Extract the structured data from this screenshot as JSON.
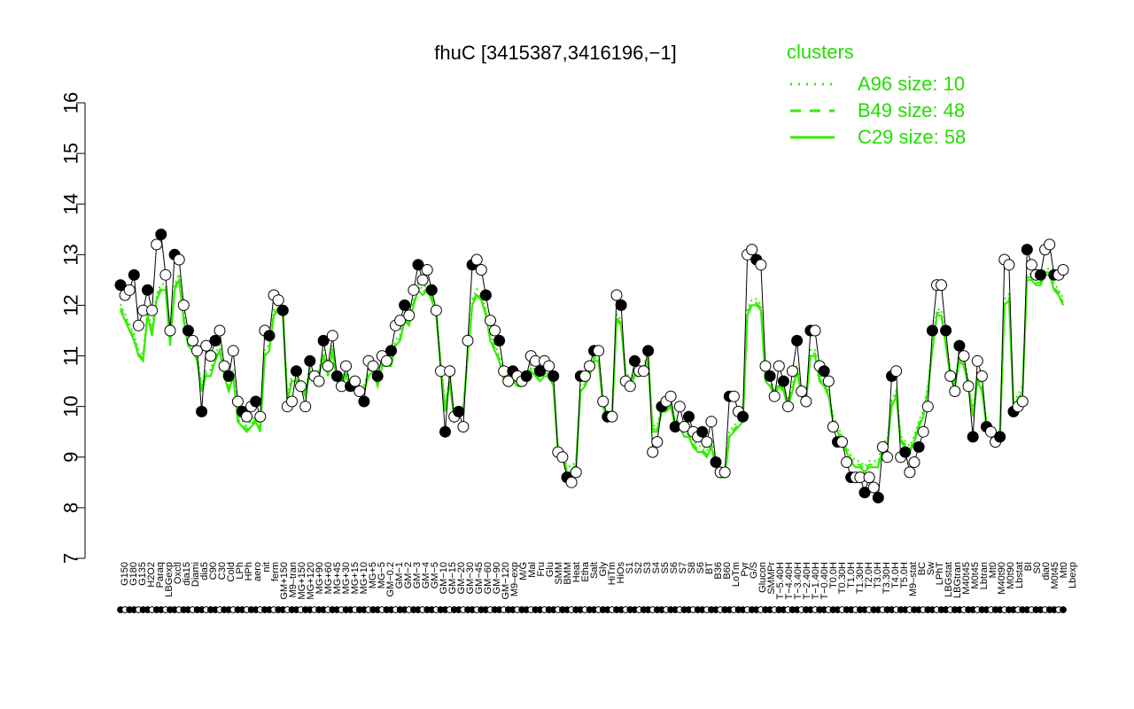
{
  "chart_data": {
    "type": "line",
    "title": "fhuC [3415387,3416196,−1]",
    "xlabel": "",
    "ylabel": "",
    "ylim": [
      7,
      16
    ],
    "yticks": [
      7,
      8,
      9,
      10,
      11,
      12,
      13,
      14,
      15,
      16
    ],
    "grid": false,
    "legend": {
      "title": "clusters",
      "position": "top-right",
      "color": "#22dd00",
      "entries": [
        {
          "label": "A96 size: 10",
          "style": "dotted"
        },
        {
          "label": "B49 size: 48",
          "style": "dashed"
        },
        {
          "label": "C29 size: 58",
          "style": "solid"
        }
      ]
    },
    "colors": {
      "lines": "#33ee00",
      "points_dark": "#000000",
      "points_light": "#ffffff"
    },
    "x_tick_labels": [
      "G150",
      "G180",
      "G135",
      "H2O2",
      "Paraq",
      "LBGexp",
      "Oxctl",
      "dia15",
      "Diami",
      "dia5",
      "C90",
      "C30",
      "Cold",
      "LPh",
      "HPh",
      "aero",
      "nit",
      "ferm",
      "GM+150",
      "M9–tran",
      "MG+150",
      "MG+120",
      "MG+90",
      "MG+60",
      "MG+45",
      "MG+30",
      "MG+15",
      "MG+10",
      "MG+5",
      "MG−5",
      "GM−0.2",
      "GM−1",
      "GM−2",
      "GM−3",
      "GM−4",
      "GM−5",
      "GM−10",
      "GM−15",
      "GM−20",
      "GM−30",
      "GM−45",
      "GM−60",
      "GM−90",
      "GM−120",
      "M9–exp",
      "M/G",
      "Mal",
      "Fru",
      "Glu",
      "SMM",
      "BMM",
      "Heat",
      "Etha",
      "Salt",
      "Gly",
      "HiTm",
      "HiOs",
      "S1",
      "S2",
      "S3",
      "S4",
      "S5",
      "S6",
      "S7",
      "S8",
      "S6",
      "BT",
      "B36",
      "B60",
      "LoTm",
      "Pyr",
      "G/S",
      "Glucon",
      "SMMPr",
      "T−5.40H",
      "T−4.40H",
      "T−3.40H",
      "T−2.40H",
      "T−1.40H",
      "T−0.40H",
      "T0.0H",
      "T0.30H",
      "T1.0H",
      "T1.30H",
      "T2.0H",
      "T3.0H",
      "T3.30H",
      "T4.0H",
      "T5.0H",
      "M9–stat",
      "BC",
      "Sw",
      "LPhT",
      "LBGstat",
      "LBGtran",
      "M40t45",
      "M0t45",
      "Lbtran",
      "Mt0",
      "M40t90",
      "M0t90",
      "Lbstat",
      "BI",
      "S0",
      "dia0",
      "M0t45",
      "Mt0",
      "Lbexp"
    ],
    "series": [
      {
        "name": "",
        "values": [
          12.4,
          12.2,
          12.3,
          12.6,
          11.6,
          11.9,
          12.3,
          11.9,
          13.2,
          13.4,
          12.6,
          11.5,
          13.0,
          12.9,
          12.0,
          11.5,
          11.3,
          11.1,
          9.9,
          11.2,
          11.0,
          11.3,
          11.5,
          10.8,
          10.6,
          11.1,
          10.1,
          9.9,
          9.8,
          10.0,
          10.1,
          9.8,
          11.5,
          11.4,
          12.2,
          12.1,
          11.9,
          10.0,
          10.1,
          10.7,
          10.4,
          10.0,
          10.9,
          10.6,
          10.5,
          11.3,
          10.8,
          11.4,
          10.6,
          10.4,
          10.8,
          10.4,
          10.5,
          10.3,
          10.1,
          10.9,
          10.8,
          10.6,
          11.0,
          10.9,
          11.1,
          11.6,
          11.7,
          12.0,
          11.8,
          12.3,
          12.8,
          12.5,
          12.7,
          12.3,
          11.9,
          10.7,
          9.5,
          10.7,
          9.8,
          9.9,
          9.6,
          11.3,
          12.8,
          12.9,
          12.7,
          12.2,
          11.7,
          11.5,
          11.3,
          10.7,
          10.5,
          10.7,
          10.6,
          10.5,
          10.6,
          11.0,
          10.9,
          10.7,
          10.9,
          10.8,
          10.6,
          9.1,
          9.0,
          8.6,
          8.5,
          8.7,
          10.6,
          10.6,
          10.8,
          11.1,
          11.1,
          10.1,
          9.8,
          9.8,
          12.2,
          12.0,
          10.5,
          10.4,
          10.9,
          10.7,
          10.7,
          11.1,
          9.1,
          9.3,
          10.0,
          10.1,
          10.2,
          9.6,
          10.0,
          9.6,
          9.8,
          9.5,
          9.4,
          9.5,
          9.3,
          9.7,
          8.9,
          8.7,
          8.7,
          10.2,
          10.2,
          9.9,
          9.8,
          13.0,
          13.1,
          12.9,
          12.8,
          10.8,
          10.6,
          10.2,
          10.8,
          10.5,
          10.0,
          10.7,
          11.3,
          10.3,
          10.1,
          11.5,
          11.5,
          10.8,
          10.7,
          10.5,
          9.6,
          9.3,
          9.3,
          8.9,
          8.6,
          8.6,
          8.6,
          8.3,
          8.6,
          8.4,
          8.2,
          9.2,
          9.0,
          10.6,
          10.7,
          9.0,
          9.1,
          8.7,
          8.9,
          9.2,
          9.5,
          10.0,
          11.5,
          12.4,
          12.4,
          11.5,
          10.6,
          10.3,
          11.2,
          11.0,
          10.4,
          9.4,
          10.9,
          10.6,
          9.6,
          9.5,
          9.3,
          9.4,
          12.9,
          12.8,
          9.9,
          10.0,
          10.1,
          13.1,
          12.8,
          12.6,
          12.6,
          13.1,
          13.2,
          12.6,
          12.6,
          12.7
        ]
      },
      {
        "name": "C29 size: 58",
        "values": [
          11.9,
          11.7,
          11.5,
          11.3,
          11.0,
          10.9,
          11.8,
          11.4,
          12.1,
          12.3,
          12.3,
          11.2,
          12.3,
          12.5,
          11.7,
          11.2,
          11.1,
          10.9,
          10.3,
          10.6,
          10.6,
          10.9,
          11.1,
          10.6,
          10.3,
          10.6,
          9.7,
          9.6,
          9.5,
          9.6,
          9.7,
          9.5,
          11.0,
          11.1,
          11.8,
          11.9,
          11.8,
          10.1,
          10.5,
          10.5,
          10.4,
          10.2,
          10.7,
          10.5,
          10.6,
          11.0,
          10.6,
          11.1,
          10.5,
          10.4,
          10.6,
          10.4,
          10.4,
          10.3,
          10.3,
          10.6,
          10.7,
          10.4,
          10.8,
          10.8,
          10.8,
          11.2,
          11.3,
          11.7,
          11.6,
          12.0,
          12.3,
          12.2,
          12.3,
          12.1,
          11.8,
          10.8,
          9.9,
          10.5,
          9.7,
          9.8,
          9.9,
          11.0,
          12.0,
          12.2,
          12.1,
          11.8,
          11.3,
          11.1,
          10.9,
          10.5,
          10.4,
          10.5,
          10.4,
          10.4,
          10.5,
          10.7,
          10.6,
          10.5,
          10.6,
          10.6,
          10.4,
          9.1,
          9.0,
          8.7,
          8.7,
          8.8,
          10.3,
          10.4,
          10.6,
          10.9,
          10.9,
          10.0,
          9.7,
          9.8,
          11.7,
          11.6,
          10.6,
          10.4,
          10.6,
          10.6,
          10.7,
          10.9,
          9.5,
          9.5,
          9.9,
          9.9,
          10.0,
          9.6,
          9.6,
          9.4,
          9.4,
          9.2,
          9.1,
          9.1,
          9.0,
          9.2,
          8.8,
          8.6,
          8.6,
          9.4,
          9.5,
          9.6,
          9.7,
          11.8,
          12.0,
          12.0,
          11.9,
          10.5,
          10.4,
          10.2,
          10.4,
          10.3,
          10.0,
          10.3,
          10.7,
          10.2,
          10.1,
          11.0,
          11.0,
          10.5,
          10.4,
          10.2,
          9.7,
          9.5,
          9.3,
          9.1,
          8.9,
          8.8,
          8.8,
          8.7,
          8.8,
          8.8,
          8.8,
          9.2,
          9.2,
          10.0,
          10.2,
          9.3,
          9.2,
          9.1,
          9.3,
          9.6,
          9.8,
          10.3,
          11.1,
          11.8,
          11.8,
          11.2,
          10.6,
          10.4,
          10.9,
          10.8,
          10.4,
          9.8,
          10.5,
          10.3,
          9.6,
          9.4,
          9.3,
          9.4,
          12.0,
          12.1,
          10.0,
          10.1,
          10.3,
          12.5,
          12.5,
          12.4,
          12.4,
          12.6,
          12.6,
          12.3,
          12.2,
          12.0
        ]
      }
    ]
  }
}
